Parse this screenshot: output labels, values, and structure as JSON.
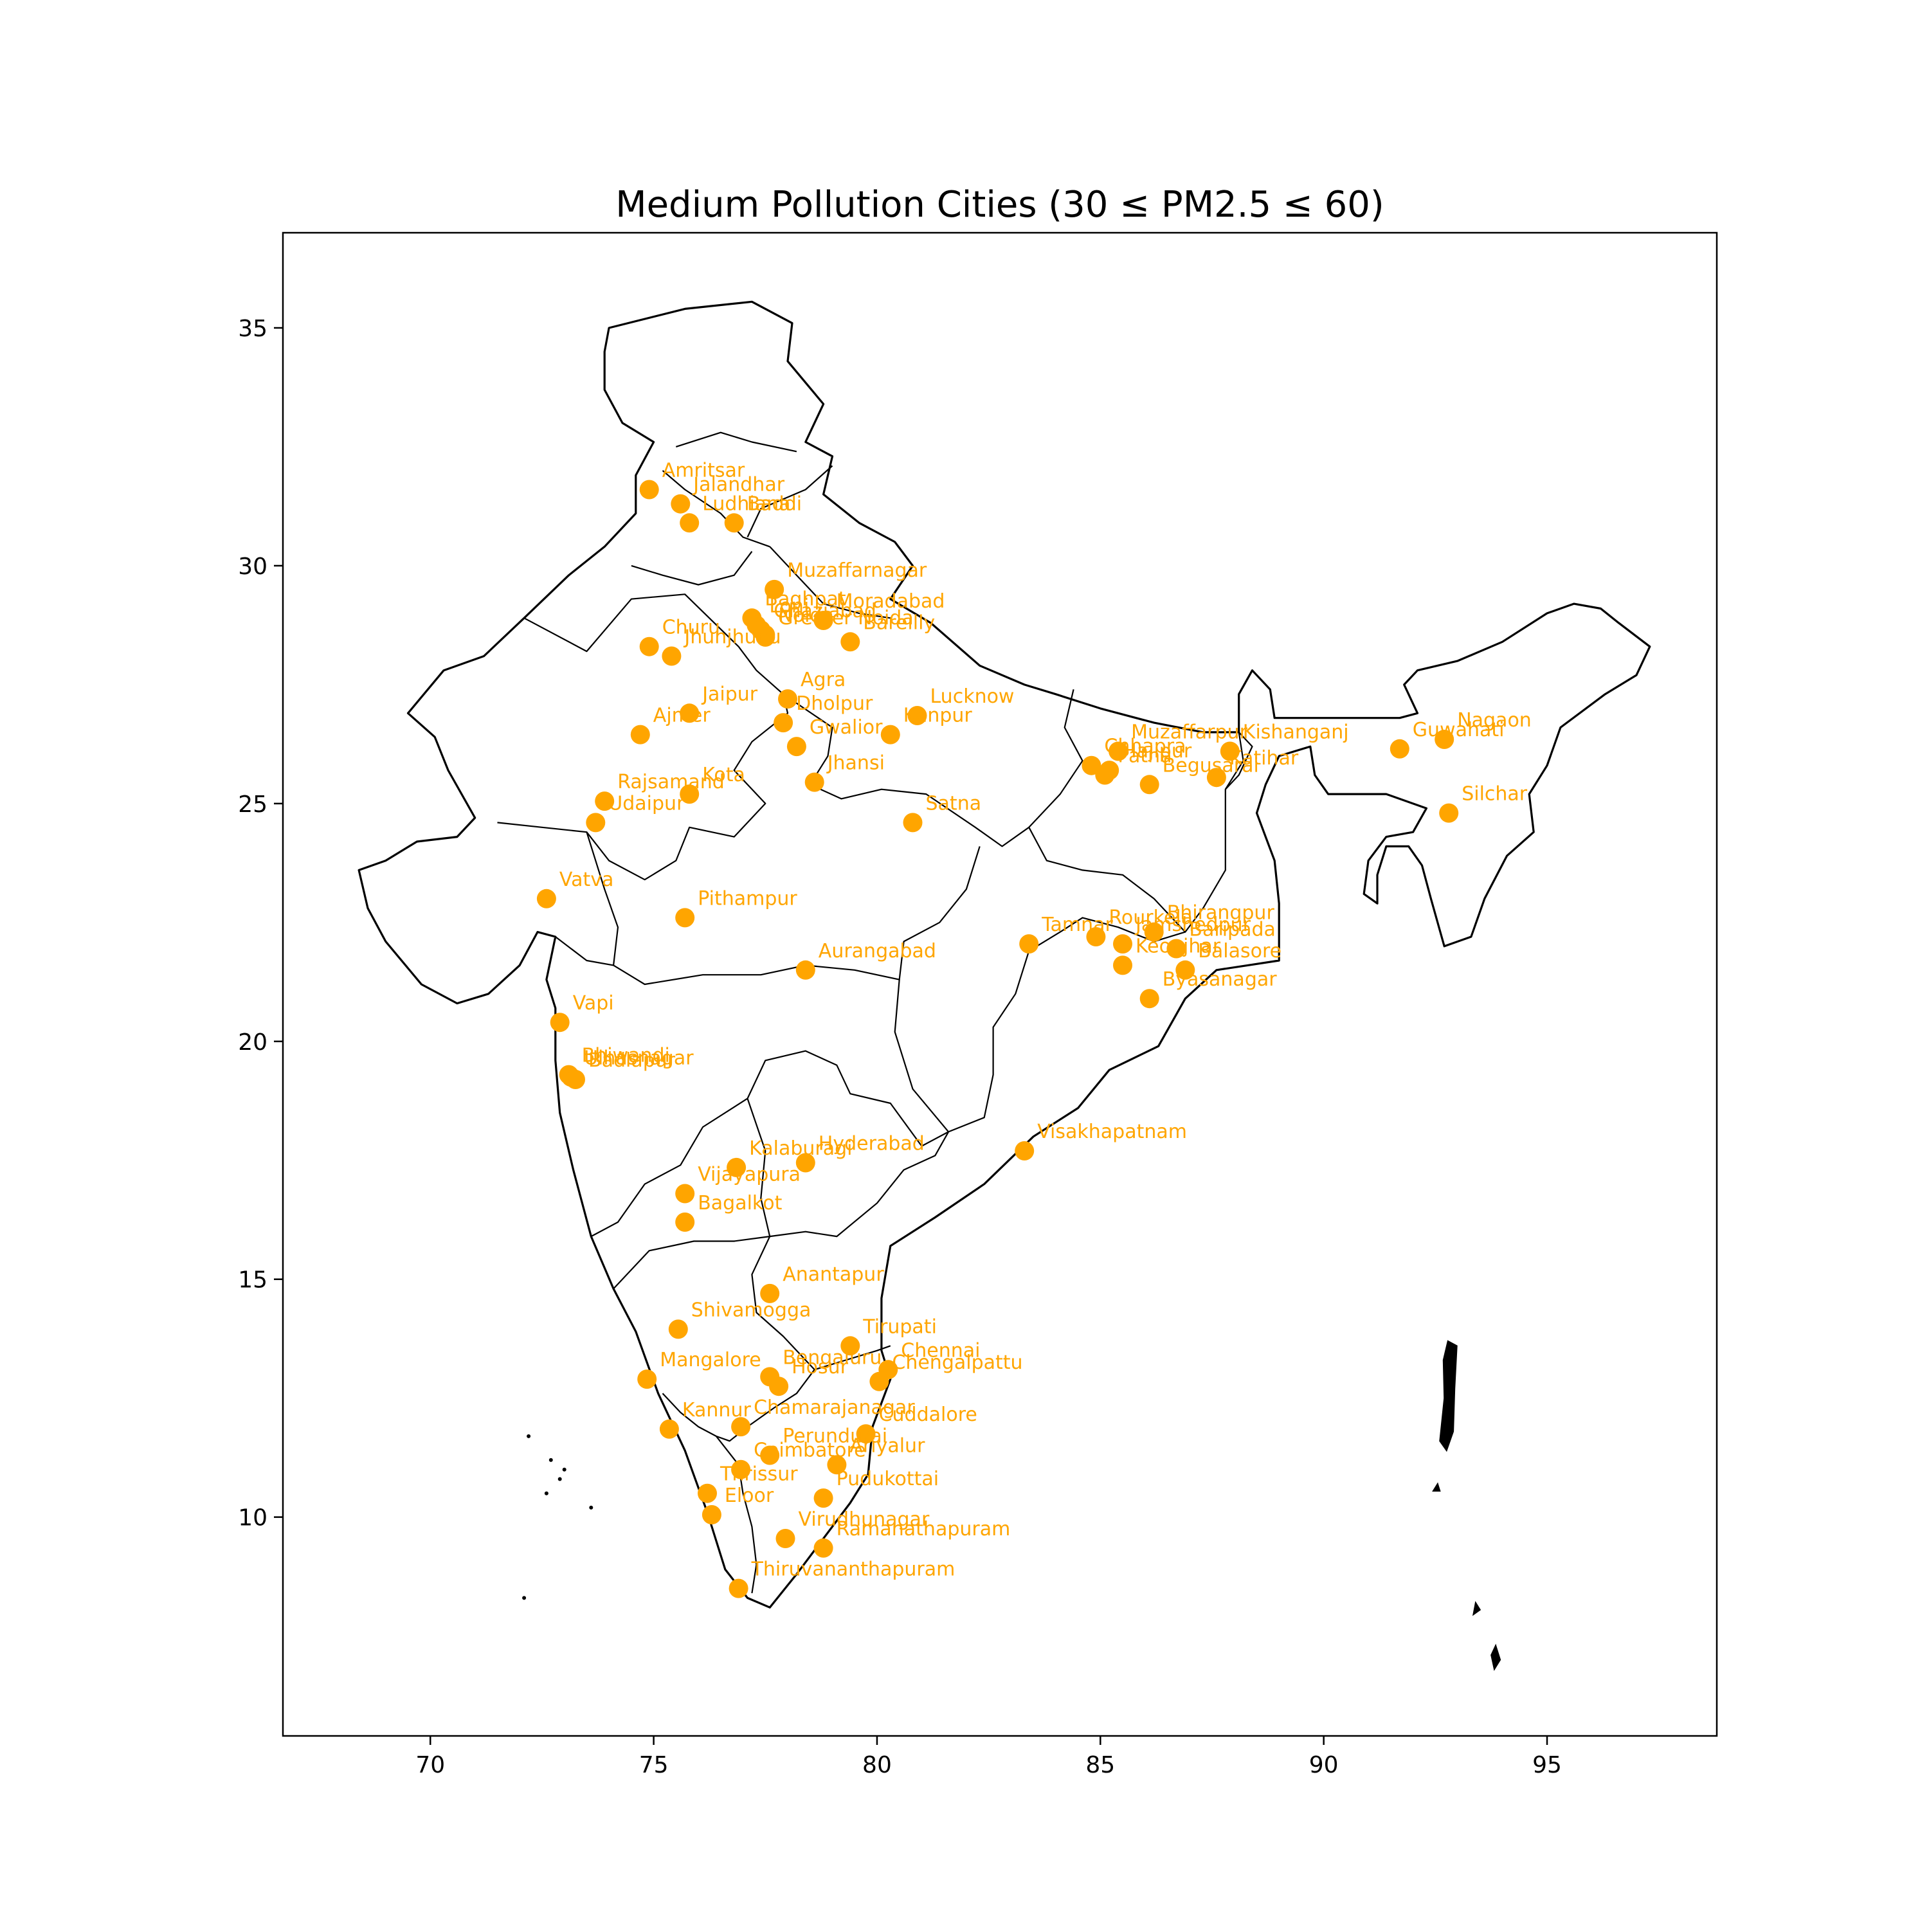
{
  "chart_data": {
    "type": "scatter",
    "title": "Medium Pollution Cities (30 ≤ PM2.5 ≤ 60)",
    "xlabel": "",
    "ylabel": "",
    "xlim": [
      66.7,
      98.8
    ],
    "ylim": [
      5.4,
      37.0
    ],
    "xticks": [
      70,
      75,
      80,
      85,
      90,
      95
    ],
    "yticks": [
      10,
      15,
      20,
      25,
      30,
      35
    ],
    "grid": false,
    "point_color": "#ffa500",
    "label_color": "#ffa500",
    "outline_color": "#000000",
    "points": [
      {
        "name": "Amritsar",
        "x": 74.9,
        "y": 31.6
      },
      {
        "name": "Jalandhar",
        "x": 75.6,
        "y": 31.3
      },
      {
        "name": "Ludhiana",
        "x": 75.8,
        "y": 30.9
      },
      {
        "name": "Baddi",
        "x": 76.8,
        "y": 30.9
      },
      {
        "name": "Muzaffarnagar",
        "x": 77.7,
        "y": 29.5
      },
      {
        "name": "Baghpat",
        "x": 77.2,
        "y": 28.9
      },
      {
        "name": "Loni",
        "x": 77.3,
        "y": 28.75
      },
      {
        "name": "Ghaziabad",
        "x": 77.4,
        "y": 28.65
      },
      {
        "name": "Moradabad",
        "x": 78.8,
        "y": 28.85
      },
      {
        "name": "Noida",
        "x": 77.5,
        "y": 28.55
      },
      {
        "name": "Greater Noida",
        "x": 77.5,
        "y": 28.5
      },
      {
        "name": "Bareilly",
        "x": 79.4,
        "y": 28.4
      },
      {
        "name": "Churu",
        "x": 74.9,
        "y": 28.3
      },
      {
        "name": "Jhunjhunu",
        "x": 75.4,
        "y": 28.1
      },
      {
        "name": "Agra",
        "x": 78.0,
        "y": 27.2
      },
      {
        "name": "Jaipur",
        "x": 75.8,
        "y": 26.9
      },
      {
        "name": "Dholpur",
        "x": 77.9,
        "y": 26.7
      },
      {
        "name": "Lucknow",
        "x": 80.9,
        "y": 26.85
      },
      {
        "name": "Kanpur",
        "x": 80.3,
        "y": 26.45
      },
      {
        "name": "Ajmer",
        "x": 74.7,
        "y": 26.45
      },
      {
        "name": "Gwalior",
        "x": 78.2,
        "y": 26.2
      },
      {
        "name": "Jhansi",
        "x": 78.6,
        "y": 25.45
      },
      {
        "name": "Kota",
        "x": 75.8,
        "y": 25.2
      },
      {
        "name": "Rajsamand",
        "x": 73.9,
        "y": 25.05
      },
      {
        "name": "Udaipur",
        "x": 73.7,
        "y": 24.6
      },
      {
        "name": "Satna",
        "x": 80.8,
        "y": 24.6
      },
      {
        "name": "Muzaffarpur",
        "x": 85.4,
        "y": 26.1
      },
      {
        "name": "Chhapra",
        "x": 84.8,
        "y": 25.8
      },
      {
        "name": "Hajipur",
        "x": 85.2,
        "y": 25.7
      },
      {
        "name": "Patna",
        "x": 85.1,
        "y": 25.6
      },
      {
        "name": "Begusarai",
        "x": 86.1,
        "y": 25.4
      },
      {
        "name": "Kishanganj",
        "x": 87.9,
        "y": 26.1
      },
      {
        "name": "Katihar",
        "x": 87.6,
        "y": 25.55
      },
      {
        "name": "Guwahati",
        "x": 91.7,
        "y": 26.15
      },
      {
        "name": "Nagaon",
        "x": 92.7,
        "y": 26.35
      },
      {
        "name": "Silchar",
        "x": 92.8,
        "y": 24.8
      },
      {
        "name": "Vatva",
        "x": 72.6,
        "y": 23.0
      },
      {
        "name": "Pithampur",
        "x": 75.7,
        "y": 22.6
      },
      {
        "name": "Aurangabad",
        "x": 78.4,
        "y": 21.5
      },
      {
        "name": "Tamnar",
        "x": 83.4,
        "y": 22.05
      },
      {
        "name": "Rourkela",
        "x": 84.9,
        "y": 22.2
      },
      {
        "name": "Jamshedpur",
        "x": 85.5,
        "y": 22.05
      },
      {
        "name": "Bhirangpur",
        "x": 86.2,
        "y": 22.3
      },
      {
        "name": "Baripada",
        "x": 86.7,
        "y": 21.95
      },
      {
        "name": "Keonjhar",
        "x": 85.5,
        "y": 21.6
      },
      {
        "name": "Balasore",
        "x": 86.9,
        "y": 21.5
      },
      {
        "name": "Byasanagar",
        "x": 86.1,
        "y": 20.9
      },
      {
        "name": "Vapi",
        "x": 72.9,
        "y": 20.4
      },
      {
        "name": "Bhiwandi",
        "x": 73.1,
        "y": 19.3
      },
      {
        "name": "Ulhasnagar",
        "x": 73.15,
        "y": 19.25
      },
      {
        "name": "Badlapur",
        "x": 73.25,
        "y": 19.2
      },
      {
        "name": "Visakhapatnam",
        "x": 83.3,
        "y": 17.7
      },
      {
        "name": "Hyderabad",
        "x": 78.4,
        "y": 17.45
      },
      {
        "name": "Kalaburagi",
        "x": 76.85,
        "y": 17.35
      },
      {
        "name": "Vijayapura",
        "x": 75.7,
        "y": 16.8
      },
      {
        "name": "Bagalkot",
        "x": 75.7,
        "y": 16.2
      },
      {
        "name": "Anantapur",
        "x": 77.6,
        "y": 14.7
      },
      {
        "name": "Shivamogga",
        "x": 75.55,
        "y": 13.95
      },
      {
        "name": "Tirupati",
        "x": 79.4,
        "y": 13.6
      },
      {
        "name": "Bengaluru",
        "x": 77.6,
        "y": 12.95
      },
      {
        "name": "Hosur",
        "x": 77.8,
        "y": 12.75
      },
      {
        "name": "Chennai",
        "x": 80.25,
        "y": 13.1
      },
      {
        "name": "Chengalpattu",
        "x": 80.05,
        "y": 12.85
      },
      {
        "name": "Mangalore",
        "x": 74.85,
        "y": 12.9
      },
      {
        "name": "Kannur",
        "x": 75.35,
        "y": 11.85
      },
      {
        "name": "Chamarajanagar",
        "x": 76.95,
        "y": 11.9
      },
      {
        "name": "Cuddalore",
        "x": 79.75,
        "y": 11.75
      },
      {
        "name": "Perundurai",
        "x": 77.6,
        "y": 11.3
      },
      {
        "name": "Ariyalur",
        "x": 79.1,
        "y": 11.1
      },
      {
        "name": "Coimbatore",
        "x": 76.95,
        "y": 11.0
      },
      {
        "name": "Thrissur",
        "x": 76.2,
        "y": 10.5
      },
      {
        "name": "Eloor",
        "x": 76.3,
        "y": 10.05
      },
      {
        "name": "Pudukottai",
        "x": 78.8,
        "y": 10.4
      },
      {
        "name": "Virudhunagar",
        "x": 77.95,
        "y": 9.55
      },
      {
        "name": "Ramanathapuram",
        "x": 78.8,
        "y": 9.35
      },
      {
        "name": "Thiruvananthapuram",
        "x": 76.9,
        "y": 8.5
      }
    ]
  }
}
